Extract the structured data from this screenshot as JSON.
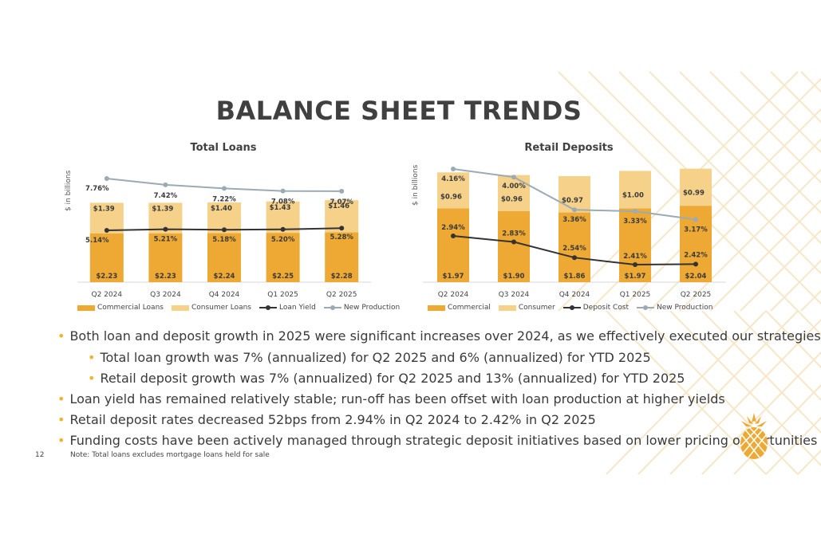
{
  "slide_title": "BALANCE SHEET TRENDS",
  "y_axis_label": "$ in billions",
  "colors": {
    "commercial": "#EDA933",
    "consumer": "#F5D18A",
    "yield_line": "#333333",
    "new_production_line": "#9AABB5",
    "bullet_dot": "#F0B429",
    "deco_lines": "#F6E7C8"
  },
  "chart_data": [
    {
      "type": "bar",
      "title": "Total Loans",
      "ylabel": "$ in billions",
      "categories": [
        "Q2 2024",
        "Q3 2024",
        "Q4 2024",
        "Q1 2025",
        "Q2 2025"
      ],
      "series": [
        {
          "name": "Commercial Loans",
          "kind": "bar",
          "values": [
            2.23,
            2.23,
            2.24,
            2.25,
            2.28
          ],
          "labels": [
            "$2.23",
            "$2.23",
            "$2.24",
            "$2.25",
            "$2.28"
          ]
        },
        {
          "name": "Consumer Loans",
          "kind": "bar",
          "values": [
            1.39,
            1.39,
            1.4,
            1.43,
            1.46
          ],
          "labels": [
            "$1.39",
            "$1.39",
            "$1.40",
            "$1.43",
            "$1.46"
          ]
        },
        {
          "name": "Loan Yield",
          "kind": "line",
          "values": [
            5.14,
            5.21,
            5.18,
            5.2,
            5.28
          ],
          "labels": [
            "5.14%",
            "5.21%",
            "5.18%",
            "5.20%",
            "5.28%"
          ]
        },
        {
          "name": "New Production",
          "kind": "line",
          "values": [
            7.76,
            7.42,
            7.22,
            7.08,
            7.07
          ],
          "labels": [
            "7.76%",
            "7.42%",
            "7.22%",
            "7.08%",
            "7.07%"
          ]
        }
      ],
      "legend_position": "bottom"
    },
    {
      "type": "bar",
      "title": "Retail Deposits",
      "ylabel": "$ in billions",
      "categories": [
        "Q2 2024",
        "Q3 2024",
        "Q4 2024",
        "Q1 2025",
        "Q2 2025"
      ],
      "series": [
        {
          "name": "Commercial",
          "kind": "bar",
          "values": [
            1.97,
            1.9,
            1.86,
            1.97,
            2.04
          ],
          "labels": [
            "$1.97",
            "$1.90",
            "$1.86",
            "$1.97",
            "$2.04"
          ]
        },
        {
          "name": "Consumer",
          "kind": "bar",
          "values": [
            0.96,
            0.96,
            0.97,
            1.0,
            0.99
          ],
          "labels": [
            "$0.96",
            "$0.96",
            "$0.97",
            "$1.00",
            "$0.99"
          ]
        },
        {
          "name": "Deposit Cost",
          "kind": "line",
          "values": [
            2.94,
            2.83,
            2.54,
            2.41,
            2.42
          ],
          "labels": [
            "2.94%",
            "2.83%",
            "2.54%",
            "2.41%",
            "2.42%"
          ]
        },
        {
          "name": "New Production",
          "kind": "line",
          "values": [
            4.16,
            4.0,
            3.36,
            3.33,
            3.17
          ],
          "labels": [
            "4.16%",
            "4.00%",
            "3.36%",
            "3.33%",
            "3.17%"
          ]
        }
      ],
      "legend_position": "bottom"
    }
  ],
  "bullets": [
    {
      "level": 1,
      "text": "Both loan and deposit growth in 2025 were significant increases over 2024, as we effectively executed our strategies"
    },
    {
      "level": 2,
      "text": "Total loan growth was 7% (annualized) for Q2 2025 and 6% (annualized) for YTD 2025"
    },
    {
      "level": 2,
      "text": "Retail deposit growth was 7% (annualized) for Q2 2025 and 13% (annualized) for YTD 2025"
    },
    {
      "level": 1,
      "text": "Loan yield has remained relatively stable; run-off has been offset with loan production at higher yields"
    },
    {
      "level": 1,
      "text": "Retail deposit rates decreased 52bps from 2.94% in Q2 2024 to 2.42% in Q2 2025"
    },
    {
      "level": 1,
      "text": "Funding costs have been actively managed through strategic deposit initiatives based on lower pricing opportunities"
    }
  ],
  "page_number": "12",
  "footnote": "Note: Total loans excludes mortgage loans held for sale"
}
